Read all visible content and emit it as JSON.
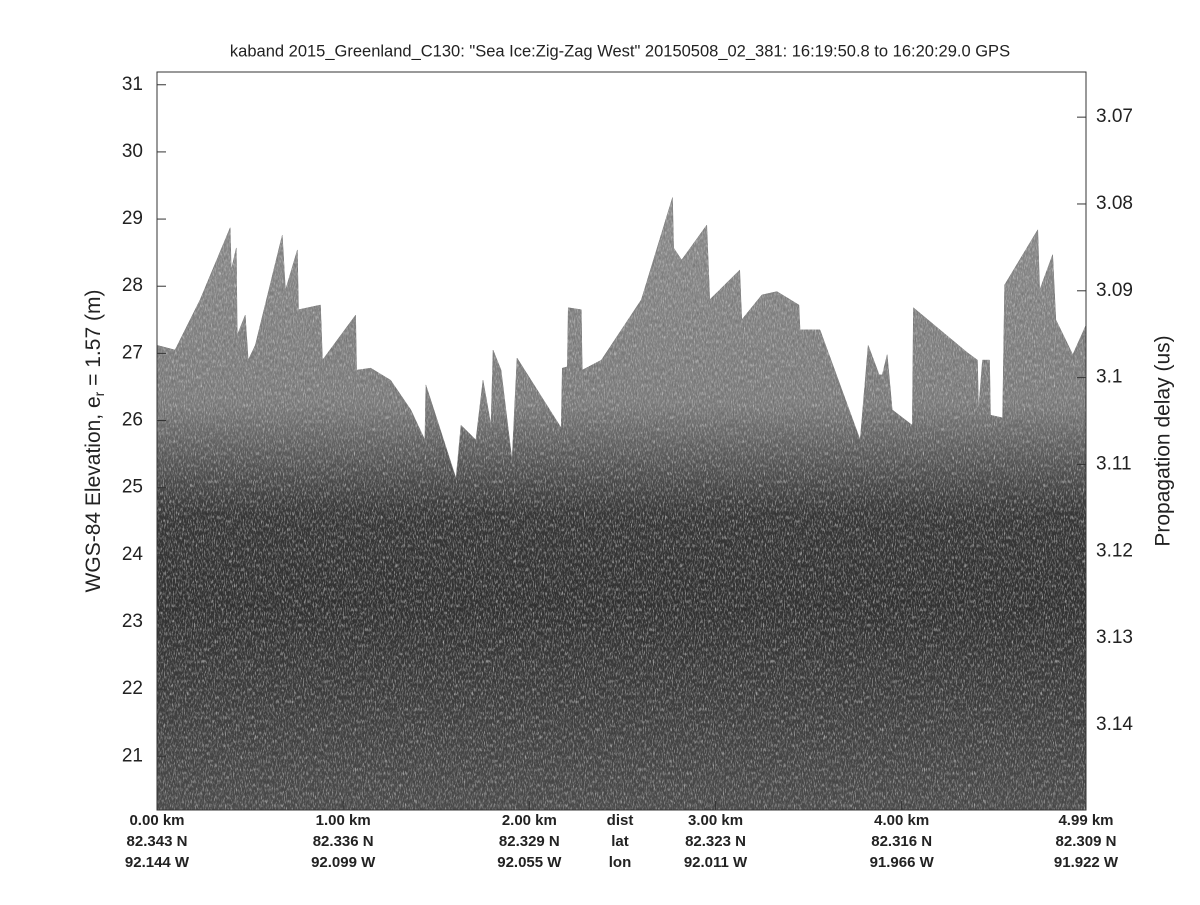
{
  "chart_data": {
    "type": "area",
    "title": "kaband 2015_Greenland_C130: \"Sea Ice:Zig-Zag West\"  20150508_02_381: 16:19:50.8 to 16:20:29.0 GPS",
    "ylabel": [
      "WGS-84 Elevation, e",
      "r",
      " = 1.57 (m)"
    ],
    "y2label": "Propagation delay (us)",
    "xlim": [
      0,
      4.99
    ],
    "ylim": [
      20.2,
      31.19
    ],
    "y2lim": [
      3.1498,
      3.0648
    ],
    "yticks": [
      21,
      22,
      23,
      24,
      25,
      26,
      27,
      28,
      29,
      30,
      31
    ],
    "y2ticks": [
      3.07,
      3.08,
      3.09,
      3.1,
      3.11,
      3.12,
      3.13,
      3.14
    ],
    "xticks": [
      {
        "value": 0,
        "label": "0.00 km"
      },
      {
        "value": 1,
        "label": "1.00 km"
      },
      {
        "value": 2,
        "label": "2.00 km"
      },
      {
        "value": 3,
        "label": "3.00 km"
      },
      {
        "value": 4,
        "label": "4.00 km"
      },
      {
        "value": 4.99,
        "label": "4.99 km"
      }
    ],
    "lat_labels": [
      "82.343 N",
      "82.336 N",
      "82.329 N",
      "82.323 N",
      "82.316 N",
      "82.309 N"
    ],
    "lon_labels": [
      "92.144 W",
      "92.099 W",
      "92.055 W",
      "92.011 W",
      "91.966 W",
      "91.922 W"
    ],
    "row_labels": [
      "dist",
      "lat",
      "lon"
    ],
    "series": [
      {
        "color": "#7c7c7c",
        "x": [
          0.0,
          0.097,
          0.232,
          0.393,
          0.399,
          0.426,
          0.431,
          0.474,
          0.49,
          0.528,
          0.673,
          0.69,
          0.754,
          0.76,
          0.878,
          0.889,
          1.067,
          1.072,
          1.148,
          1.255,
          1.363,
          1.439,
          1.444,
          1.606,
          1.633,
          1.713,
          1.751,
          1.794,
          1.805,
          1.848,
          1.907,
          1.934,
          2.171,
          2.177,
          2.204,
          2.209,
          2.279,
          2.284,
          2.387,
          2.602,
          2.769,
          2.775,
          2.818,
          2.953,
          2.969,
          3.13,
          3.141,
          3.249,
          3.33,
          3.448,
          3.454,
          3.561,
          3.777,
          3.82,
          3.879,
          3.896,
          3.922,
          3.949,
          4.057,
          4.063,
          4.353,
          4.407,
          4.413,
          4.434,
          4.472,
          4.477,
          4.542,
          4.553,
          4.731,
          4.741,
          4.811,
          4.828,
          4.919,
          4.99
        ],
        "values": [
          27.12,
          27.05,
          27.8,
          28.87,
          28.24,
          28.57,
          27.27,
          27.57,
          26.9,
          27.12,
          28.76,
          27.94,
          28.54,
          27.65,
          27.72,
          26.9,
          27.57,
          26.75,
          26.78,
          26.6,
          26.16,
          25.71,
          26.53,
          25.14,
          25.93,
          25.71,
          26.6,
          25.93,
          27.05,
          26.75,
          25.41,
          26.93,
          25.89,
          26.78,
          26.8,
          27.68,
          27.65,
          26.75,
          26.9,
          27.8,
          29.32,
          28.57,
          28.39,
          28.91,
          27.8,
          28.24,
          27.5,
          27.87,
          27.92,
          27.72,
          27.35,
          27.35,
          25.71,
          27.12,
          26.68,
          26.68,
          26.98,
          26.16,
          25.93,
          27.68,
          27.01,
          26.9,
          26.16,
          26.9,
          26.9,
          26.08,
          26.04,
          28.02,
          28.84,
          27.94,
          28.47,
          27.5,
          26.98,
          27.42
        ]
      }
    ]
  }
}
